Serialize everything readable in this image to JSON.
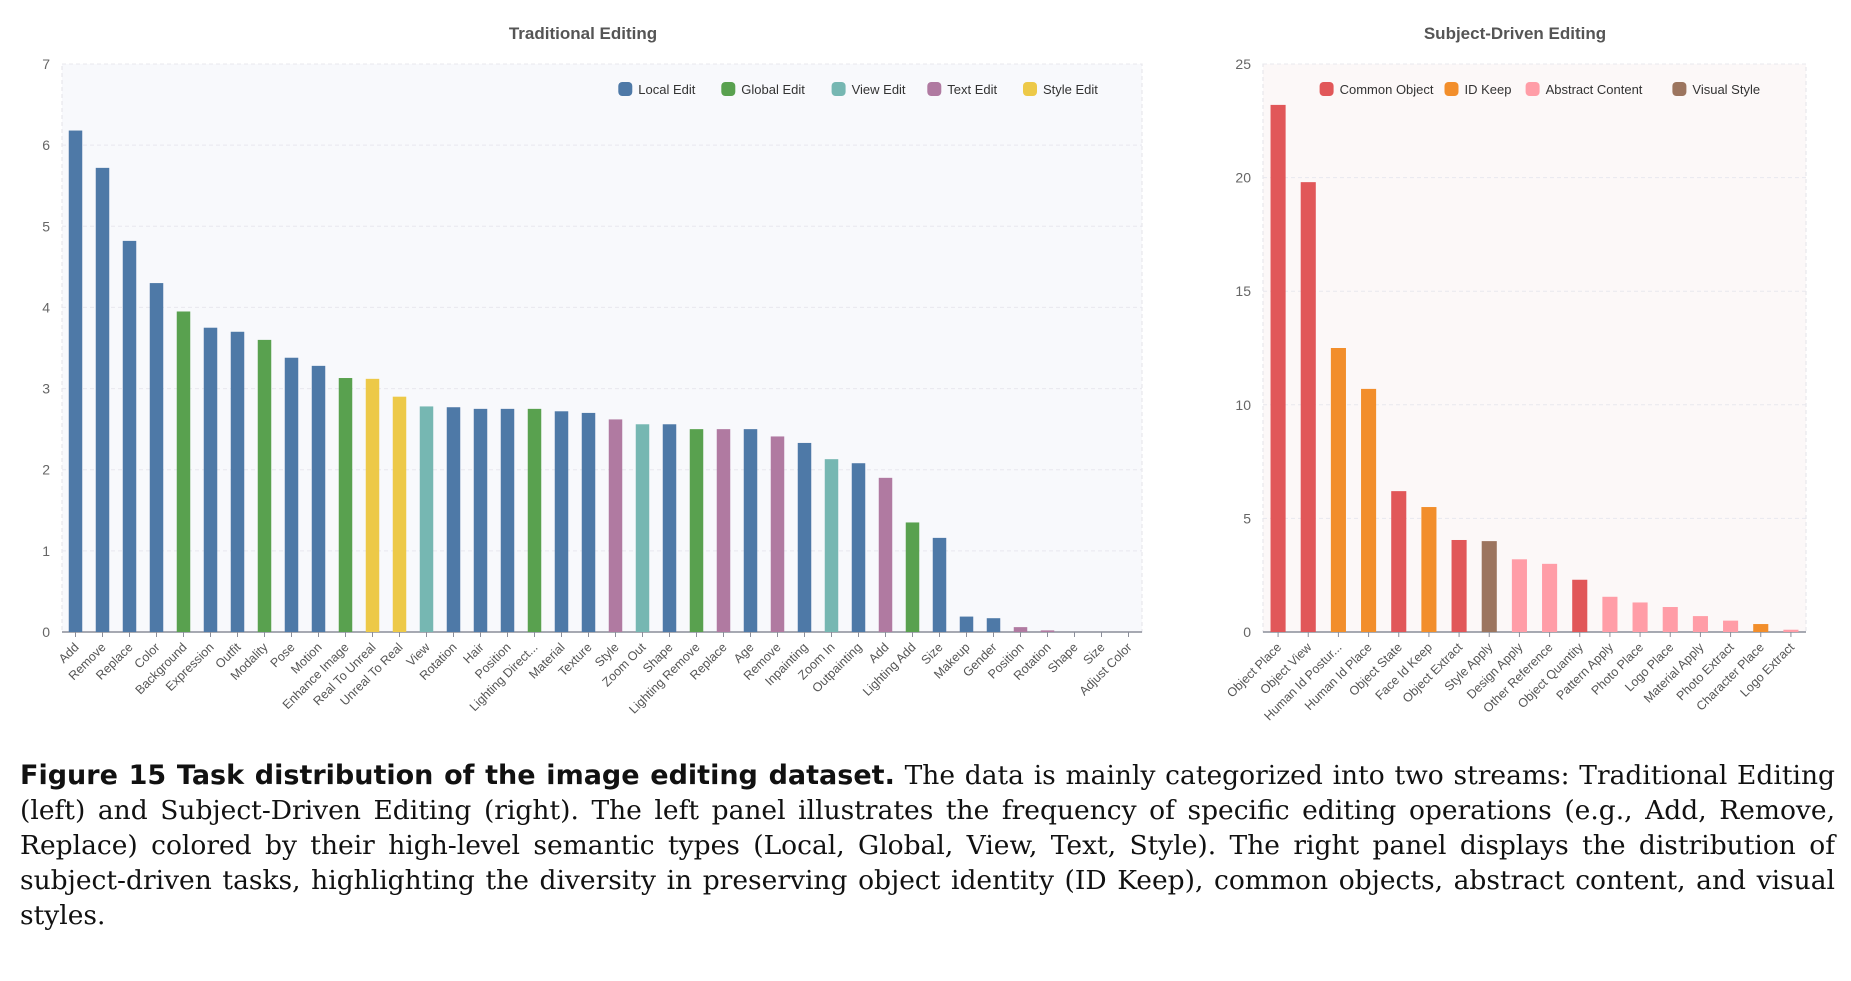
{
  "chart_data": [
    {
      "type": "bar",
      "title": "Traditional Editing",
      "xlabel": "",
      "ylabel": "",
      "ylim": [
        0,
        7
      ],
      "yticks": [
        0,
        1,
        2,
        3,
        4,
        5,
        6,
        7
      ],
      "grid": true,
      "legend_position": "top-right",
      "legend": [
        {
          "name": "Local Edit",
          "color": "#4e79a7"
        },
        {
          "name": "Global Edit",
          "color": "#59a14f"
        },
        {
          "name": "View Edit",
          "color": "#76b7b2"
        },
        {
          "name": "Text Edit",
          "color": "#b07aa1"
        },
        {
          "name": "Style Edit",
          "color": "#edc948"
        }
      ],
      "categories": [
        "Add",
        "Remove",
        "Replace",
        "Color",
        "Background",
        "Expression",
        "Outfit",
        "Modality",
        "Pose",
        "Motion",
        "Enhance Image",
        "Real To Unreal",
        "Unreal To Real",
        "View",
        "Rotation",
        "Hair",
        "Position",
        "Lighting Direct...",
        "Material",
        "Texture",
        "Style",
        "Zoom Out",
        "Shape",
        "Lighting Remove",
        "Replace",
        "Age",
        "Remove",
        "Inpainting",
        "Zoom In",
        "Outpainting",
        "Add",
        "Lighting Add",
        "Size",
        "Makeup",
        "Gender",
        "Position",
        "Rotation",
        "Shape",
        "Size",
        "Adjust Color"
      ],
      "values": [
        6.18,
        5.72,
        4.82,
        4.3,
        3.95,
        3.75,
        3.7,
        3.6,
        3.38,
        3.28,
        3.13,
        3.12,
        2.9,
        2.78,
        2.77,
        2.75,
        2.75,
        2.75,
        2.72,
        2.7,
        2.62,
        2.56,
        2.56,
        2.5,
        2.5,
        2.5,
        2.41,
        2.33,
        2.13,
        2.08,
        1.9,
        1.35,
        1.16,
        0.19,
        0.17,
        0.06,
        0.02,
        0,
        0,
        0
      ],
      "groups": [
        "Local Edit",
        "Local Edit",
        "Local Edit",
        "Local Edit",
        "Global Edit",
        "Local Edit",
        "Local Edit",
        "Global Edit",
        "Local Edit",
        "Local Edit",
        "Global Edit",
        "Style Edit",
        "Style Edit",
        "View Edit",
        "Local Edit",
        "Local Edit",
        "Local Edit",
        "Global Edit",
        "Local Edit",
        "Local Edit",
        "Text Edit",
        "View Edit",
        "Local Edit",
        "Global Edit",
        "Text Edit",
        "Local Edit",
        "Text Edit",
        "Local Edit",
        "View Edit",
        "Local Edit",
        "Text Edit",
        "Global Edit",
        "Local Edit",
        "Local Edit",
        "Local Edit",
        "Text Edit",
        "Text Edit",
        "Text Edit",
        "Text Edit",
        "Global Edit"
      ],
      "background": "#f8f9fc"
    },
    {
      "type": "bar",
      "title": "Subject-Driven Editing",
      "xlabel": "",
      "ylabel": "",
      "ylim": [
        0,
        25
      ],
      "yticks": [
        0,
        5,
        10,
        15,
        20,
        25
      ],
      "grid": true,
      "legend_position": "top-right",
      "legend": [
        {
          "name": "Common Object",
          "color": "#e15759"
        },
        {
          "name": "ID Keep",
          "color": "#f28e2b"
        },
        {
          "name": "Abstract Content",
          "color": "#ff9da7"
        },
        {
          "name": "Visual Style",
          "color": "#9c755f"
        }
      ],
      "categories": [
        "Object Place",
        "Object View",
        "Human Id Postur...",
        "Human Id Place",
        "Object State",
        "Face Id Keep",
        "Object Extract",
        "Style Apply",
        "Design Apply",
        "Other Reference",
        "Object Quantity",
        "Pattern Apply",
        "Photo Place",
        "Logo Place",
        "Material Apply",
        "Photo Extract",
        "Character Place",
        "Logo Extract"
      ],
      "values": [
        23.2,
        19.8,
        12.5,
        10.7,
        6.2,
        5.5,
        4.05,
        4.0,
        3.2,
        3.0,
        2.3,
        1.55,
        1.3,
        1.1,
        0.7,
        0.5,
        0.35,
        0.1
      ],
      "groups": [
        "Common Object",
        "Common Object",
        "ID Keep",
        "ID Keep",
        "Common Object",
        "ID Keep",
        "Common Object",
        "Visual Style",
        "Abstract Content",
        "Abstract Content",
        "Common Object",
        "Abstract Content",
        "Abstract Content",
        "Abstract Content",
        "Abstract Content",
        "Abstract Content",
        "ID Keep",
        "Abstract Content"
      ],
      "background": "#fcf8f8"
    }
  ],
  "caption": {
    "lead": "Figure 15  Task distribution of the image editing dataset.",
    "text": " The data is mainly categorized into two streams: Traditional Editing (left) and Subject-Driven Editing (right). The left panel illustrates the frequency of specific editing operations (e.g., Add, Remove, Replace) colored by their high-level semantic types (Local, Global, View, Text, Style). The right panel displays the distribution of subject-driven tasks, highlighting the diversity in preserving object identity (ID Keep), common objects, abstract content, and visual styles."
  }
}
